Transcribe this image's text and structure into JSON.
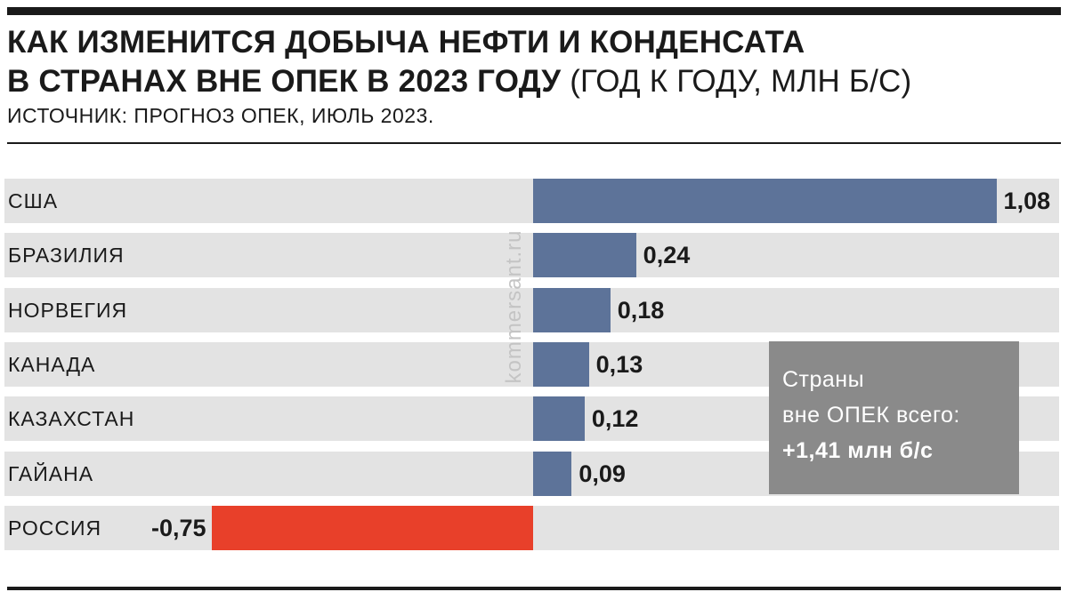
{
  "header": {
    "title_line1": "КАК ИЗМЕНИТСЯ ДОБЫЧА НЕФТИ И КОНДЕНСАТА",
    "title_line2": "В СТРАНАХ ВНЕ ОПЕК В 2023 ГОДУ",
    "title_unit": "(ГОД К ГОДУ, МЛН Б/С)",
    "source": "ИСТОЧНИК: ПРОГНОЗ ОПЕК, ИЮЛЬ 2023."
  },
  "watermark": "kommersant.ru",
  "total_box": {
    "line1": "Страны",
    "line2": "вне ОПЕК всего:",
    "line3": "+1,41 млн б/с"
  },
  "colors": {
    "positive": "#5d7399",
    "negative": "#e8402a",
    "row_bg": "#e3e3e3",
    "box": "#8a8a8a"
  },
  "chart_data": {
    "type": "bar",
    "orientation": "horizontal",
    "title": "КАК ИЗМЕНИТСЯ ДОБЫЧА НЕФТИ И КОНДЕНСАТА В СТРАНАХ ВНЕ ОПЕК В 2023 ГОДУ",
    "unit": "(ГОД К ГОДУ, МЛН Б/С)",
    "categories": [
      "США",
      "БРАЗИЛИЯ",
      "НОРВЕГИЯ",
      "КАНАДА",
      "КАЗАХСТАН",
      "ГАЙАНА",
      "РОССИЯ"
    ],
    "values": [
      1.08,
      0.24,
      0.18,
      0.13,
      0.12,
      0.09,
      -0.75
    ],
    "value_labels": [
      "1,08",
      "0,24",
      "0,18",
      "0,13",
      "0,12",
      "0,09",
      "-0,75"
    ],
    "grid": false,
    "legend": "none"
  }
}
